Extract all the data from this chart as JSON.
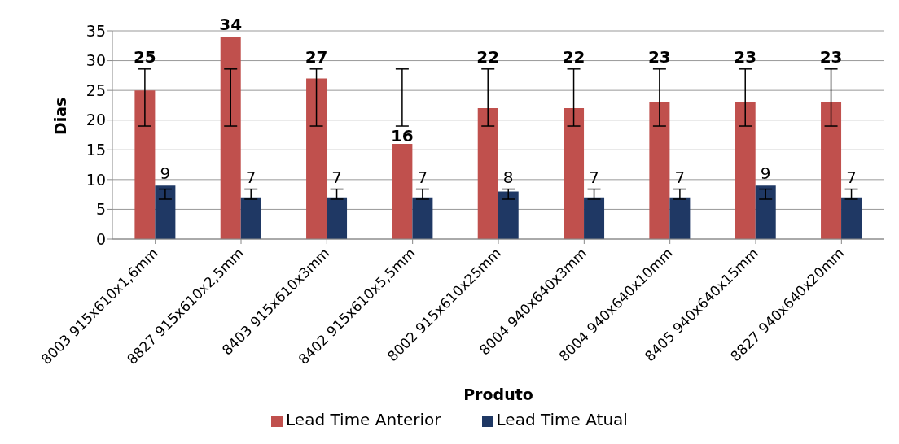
{
  "chart_data": {
    "type": "bar",
    "xlabel": "Produto",
    "ylabel": "Dias",
    "categories": [
      "8003 915x610x1,6mm",
      "8827 915x610x2,5mm",
      "8403 915x610x3mm",
      "8402 915x610x5,5mm",
      "8002 915x610x25mm",
      "8004 940x640x3mm",
      "8004 940x640x10mm",
      "8405 940x640x15mm",
      "8827 940x640x20mm"
    ],
    "series": [
      {
        "name": "Lead Time Anterior",
        "color": "#c0504d",
        "values": [
          25,
          34,
          27,
          16,
          22,
          22,
          23,
          23,
          23
        ],
        "errors": [
          [
            19,
            28.6
          ],
          [
            19,
            28.6
          ],
          [
            19,
            28.6
          ],
          [
            19,
            28.6
          ],
          [
            19,
            28.6
          ],
          [
            19,
            28.6
          ],
          [
            19,
            28.6
          ],
          [
            19,
            28.6
          ],
          [
            19,
            28.6
          ]
        ]
      },
      {
        "name": "Lead Time Atual",
        "color": "#1f3864",
        "values": [
          9,
          7,
          7,
          7,
          8,
          7,
          7,
          9,
          7
        ],
        "errors": [
          [
            6.7,
            8.4
          ],
          [
            6.7,
            8.4
          ],
          [
            6.7,
            8.4
          ],
          [
            6.7,
            8.4
          ],
          [
            6.7,
            8.4
          ],
          [
            6.7,
            8.4
          ],
          [
            6.7,
            8.4
          ],
          [
            6.7,
            8.4
          ],
          [
            6.7,
            8.4
          ]
        ]
      }
    ],
    "ylim": [
      0,
      35
    ],
    "yticks": [
      0,
      5,
      10,
      15,
      20,
      25,
      30,
      35
    ],
    "grid": "y",
    "legend": "bottom",
    "data_labels": true
  }
}
